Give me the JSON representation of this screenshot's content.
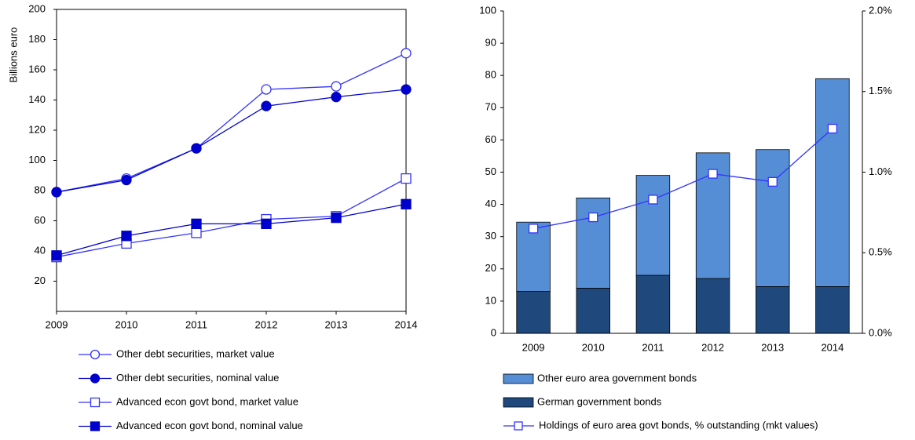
{
  "chart_data": [
    {
      "type": "line",
      "ylabel": "Billions euro",
      "categories": [
        "2009",
        "2010",
        "2011",
        "2012",
        "2013",
        "2014"
      ],
      "ylim": [
        0,
        200
      ],
      "yticks": [
        20,
        40,
        60,
        80,
        100,
        120,
        140,
        160,
        180,
        200
      ],
      "series": [
        {
          "name": "Other debt securities, market value",
          "color": "#3333ff",
          "marker": "circle",
          "filled": false,
          "values": [
            79,
            88,
            108,
            147,
            149,
            171
          ]
        },
        {
          "name": "Other debt securities, nominal value",
          "color": "#0000cc",
          "marker": "circle",
          "filled": true,
          "values": [
            79,
            87,
            108,
            136,
            142,
            147
          ]
        },
        {
          "name": "Advanced econ govt bond, market value",
          "color": "#3333ff",
          "marker": "square",
          "filled": false,
          "values": [
            36,
            45,
            52,
            61,
            63,
            88
          ]
        },
        {
          "name": "Advanced econ govt bond, nominal value",
          "color": "#0000cc",
          "marker": "square",
          "filled": true,
          "values": [
            37,
            50,
            58,
            58,
            62,
            71
          ]
        }
      ]
    },
    {
      "type": "bar",
      "stacked": true,
      "categories": [
        "2009",
        "2010",
        "2011",
        "2012",
        "2013",
        "2014"
      ],
      "ylim": [
        0,
        100
      ],
      "yticks": [
        0,
        10,
        20,
        30,
        40,
        50,
        60,
        70,
        80,
        90,
        100
      ],
      "y2lim": [
        0,
        2
      ],
      "y2ticks": [
        {
          "value": 0,
          "label": "0.0%"
        },
        {
          "value": 0.5,
          "label": "0.5%"
        },
        {
          "value": 1,
          "label": "1.0%"
        },
        {
          "value": 1.5,
          "label": "1.5%"
        },
        {
          "value": 2,
          "label": "2.0%"
        }
      ],
      "series": [
        {
          "name": "German government bonds",
          "color": "#1f497d",
          "values": [
            13,
            14,
            18,
            17,
            14.5,
            14.5
          ]
        },
        {
          "name": "Other euro area government bonds",
          "color": "#558ed5",
          "values": [
            21.5,
            28,
            31,
            39,
            42.5,
            64.5
          ]
        },
        {
          "name": "Holdings of euro area govt bonds, % outstanding (mkt values)",
          "type": "line",
          "axis": "y2",
          "color": "#3333ff",
          "marker": "square",
          "filled": false,
          "values": [
            0.65,
            0.72,
            0.83,
            0.99,
            0.94,
            1.27
          ]
        }
      ]
    }
  ]
}
